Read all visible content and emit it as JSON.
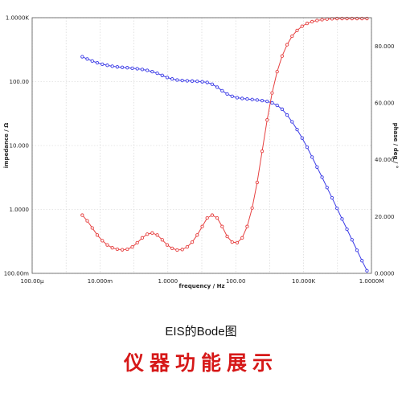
{
  "chart_data": {
    "type": "line",
    "xlabel": "frequency / Hz",
    "ylabel": "impedance / Ω",
    "y2label": "phase / deg / °",
    "xscale": "log",
    "yscale": "log",
    "xlim": [
      0.0001,
      1000000
    ],
    "ylim": [
      0.1,
      1000
    ],
    "y2lim": [
      0,
      90
    ],
    "x_ticks": [
      {
        "value": 0.0001,
        "label": "100.00µ"
      },
      {
        "value": 0.01,
        "label": "10.000m"
      },
      {
        "value": 1,
        "label": "1.0000"
      },
      {
        "value": 100,
        "label": "100.00"
      },
      {
        "value": 10000,
        "label": "10.000K"
      },
      {
        "value": 1000000,
        "label": "1.0000M"
      }
    ],
    "y_ticks": [
      {
        "value": 0.1,
        "label": "100.00m"
      },
      {
        "value": 1,
        "label": "1.0000"
      },
      {
        "value": 10,
        "label": "10.000"
      },
      {
        "value": 100,
        "label": "100.00"
      },
      {
        "value": 1000,
        "label": "1.0000K"
      }
    ],
    "y2_ticks": [
      {
        "value": 0,
        "label": "0.0000"
      },
      {
        "value": 20,
        "label": "20.000"
      },
      {
        "value": 40,
        "label": "40.000"
      },
      {
        "value": 60,
        "label": "60.000"
      },
      {
        "value": 80,
        "label": "80.000"
      }
    ],
    "grid": true,
    "series": [
      {
        "axis": "left",
        "color": "#3a3ae6",
        "marker": "circle",
        "x": [
          0.003,
          0.0042,
          0.0059,
          0.0083,
          0.0117,
          0.0164,
          0.023,
          0.0323,
          0.0453,
          0.0636,
          0.0893,
          0.125,
          0.176,
          0.247,
          0.346,
          0.486,
          0.682,
          0.957,
          1.34,
          1.88,
          2.65,
          3.71,
          5.21,
          7.31,
          10.3,
          14.4,
          20.2,
          28.4,
          39.8,
          55.9,
          78.5,
          110,
          155,
          217,
          305,
          428,
          600,
          843,
          1180,
          1660,
          2330,
          3270,
          4580,
          6430,
          9030,
          12700,
          17800,
          24900,
          35000,
          49100,
          68900,
          96700,
          136000,
          190000,
          267000,
          375000,
          526000,
          738000
        ],
        "y": [
          245,
          226,
          210,
          197,
          187,
          180,
          174,
          170,
          167,
          165,
          162,
          159,
          155,
          150,
          143,
          135,
          125,
          116,
          110,
          106,
          104,
          103,
          102,
          101,
          99.5,
          97,
          91,
          82,
          72,
          64,
          59,
          56,
          54.5,
          53.5,
          52.5,
          51.5,
          50.5,
          49,
          46.5,
          42.5,
          37,
          30,
          23.5,
          17.8,
          13.1,
          9.4,
          6.6,
          4.6,
          3.2,
          2.2,
          1.52,
          1.04,
          0.71,
          0.49,
          0.335,
          0.23,
          0.158,
          0.11
        ]
      },
      {
        "axis": "right",
        "color": "#e64040",
        "marker": "circle",
        "x": [
          0.003,
          0.0042,
          0.0059,
          0.0083,
          0.0117,
          0.0164,
          0.023,
          0.0323,
          0.0453,
          0.0636,
          0.0893,
          0.125,
          0.176,
          0.247,
          0.346,
          0.486,
          0.682,
          0.957,
          1.34,
          1.88,
          2.65,
          3.71,
          5.21,
          7.31,
          10.3,
          14.4,
          20.2,
          28.4,
          39.8,
          55.9,
          78.5,
          110,
          155,
          217,
          305,
          428,
          600,
          843,
          1180,
          1660,
          2330,
          3270,
          4580,
          6430,
          9030,
          12700,
          17800,
          24900,
          35000,
          49100,
          68900,
          96700,
          136000,
          190000,
          267000,
          375000,
          526000,
          738000
        ],
        "y": [
          20.5,
          18.5,
          16,
          13.5,
          11.5,
          10,
          9,
          8.5,
          8.3,
          8.5,
          9.3,
          10.8,
          12.5,
          13.8,
          14.2,
          13.5,
          11.8,
          10,
          8.8,
          8.2,
          8.4,
          9.3,
          11,
          13.5,
          16.5,
          19.5,
          20.5,
          19.5,
          16.5,
          13,
          11,
          10.8,
          12.5,
          16.5,
          23,
          32,
          43,
          54,
          63.5,
          71,
          76.5,
          80.5,
          83.5,
          85.5,
          87,
          88,
          88.6,
          89,
          89.3,
          89.5,
          89.6,
          89.7,
          89.7,
          89.7,
          89.7,
          89.7,
          89.7,
          89.7
        ]
      }
    ]
  },
  "caption": {
    "subtitle": "EIS的Bode图",
    "banner": "仪器功能展示"
  }
}
